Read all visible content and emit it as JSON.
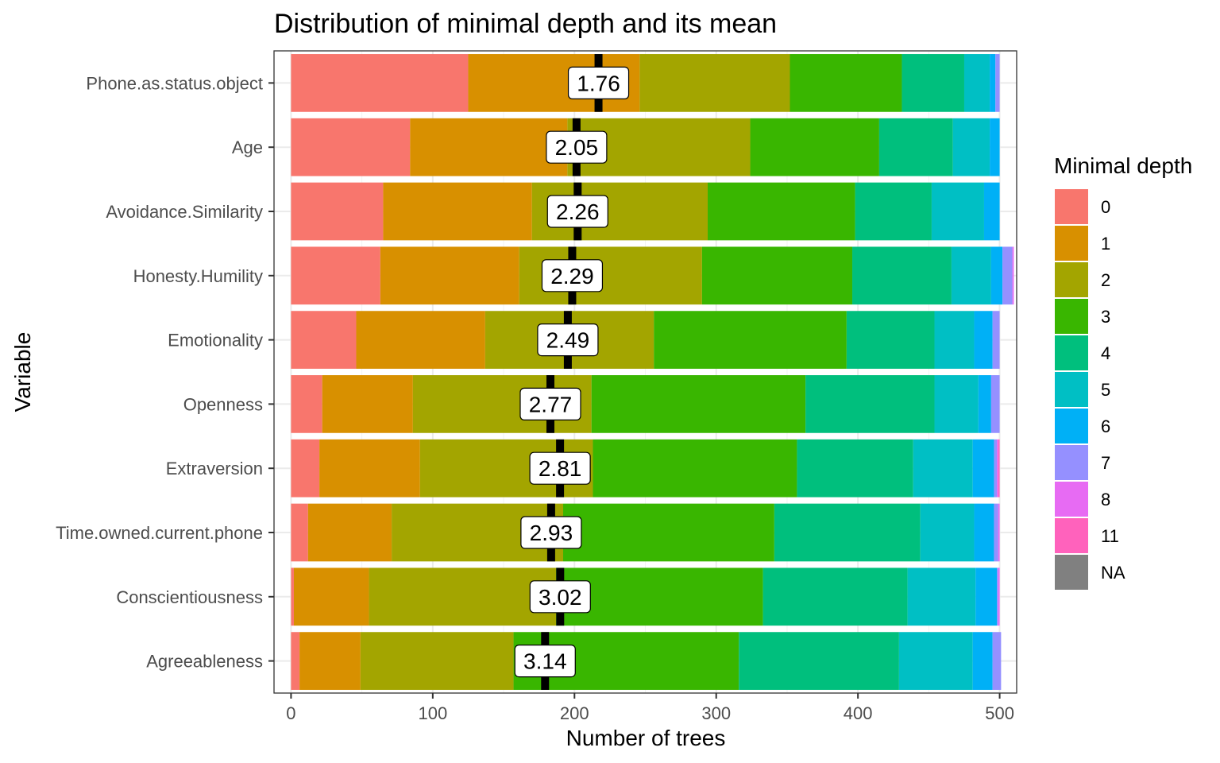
{
  "chart_data": {
    "type": "bar",
    "orientation": "horizontal",
    "stacked": true,
    "title": "Distribution of minimal depth and its mean",
    "xlabel": "Number of trees",
    "ylabel": "Variable",
    "xlim": [
      -12,
      512
    ],
    "xticks": [
      0,
      100,
      200,
      300,
      400,
      500
    ],
    "grid": true,
    "legend_position": "right",
    "legend_title": "Minimal depth",
    "categories": [
      "Phone.as.status.object",
      "Age",
      "Avoidance.Similarity",
      "Honesty.Humility",
      "Emotionality",
      "Openness",
      "Extraversion",
      "Time.owned.current.phone",
      "Conscientiousness",
      "Agreeableness"
    ],
    "series": [
      {
        "name": "0",
        "color": "#F8766D",
        "values": [
          125,
          84,
          65,
          63,
          46,
          22,
          20,
          12,
          2,
          6
        ]
      },
      {
        "name": "1",
        "color": "#D89000",
        "values": [
          121,
          111,
          105,
          98,
          91,
          64,
          71,
          59,
          53,
          43
        ]
      },
      {
        "name": "2",
        "color": "#A3A500",
        "values": [
          106,
          129,
          124,
          129,
          119,
          126,
          122,
          121,
          132,
          108
        ]
      },
      {
        "name": "3",
        "color": "#39B600",
        "values": [
          79,
          91,
          104,
          106,
          136,
          151,
          144,
          149,
          146,
          159
        ]
      },
      {
        "name": "4",
        "color": "#00BF7D",
        "values": [
          44,
          52,
          54,
          70,
          62,
          91,
          82,
          103,
          102,
          113
        ]
      },
      {
        "name": "5",
        "color": "#00BFC4",
        "values": [
          18,
          26,
          37,
          28,
          28,
          31,
          42,
          38,
          48,
          52
        ]
      },
      {
        "name": "6",
        "color": "#00B0F6",
        "values": [
          4,
          7,
          11,
          8,
          13,
          9,
          15,
          14,
          15,
          14
        ]
      },
      {
        "name": "7",
        "color": "#9590FF",
        "values": [
          3,
          0,
          0,
          7,
          5,
          6,
          2,
          3,
          1,
          6
        ]
      },
      {
        "name": "8",
        "color": "#E76BF3",
        "values": [
          0,
          0,
          0,
          1,
          0,
          0,
          1,
          1,
          1,
          0
        ]
      },
      {
        "name": "11",
        "color": "#FF62BC",
        "values": [
          0,
          0,
          0,
          0,
          0,
          0,
          1,
          0,
          0,
          0
        ]
      },
      {
        "name": "NA",
        "color": "#808080",
        "values": [
          0,
          0,
          0,
          0,
          0,
          0,
          0,
          0,
          0,
          0
        ]
      }
    ],
    "mean_depth": [
      1.76,
      2.05,
      2.26,
      2.29,
      2.49,
      2.77,
      2.81,
      2.93,
      3.02,
      3.14
    ],
    "mean_labels": [
      "1.76",
      "2.05",
      "2.26",
      "2.29",
      "2.49",
      "2.77",
      "2.81",
      "2.93",
      "3.02",
      "3.14"
    ]
  }
}
